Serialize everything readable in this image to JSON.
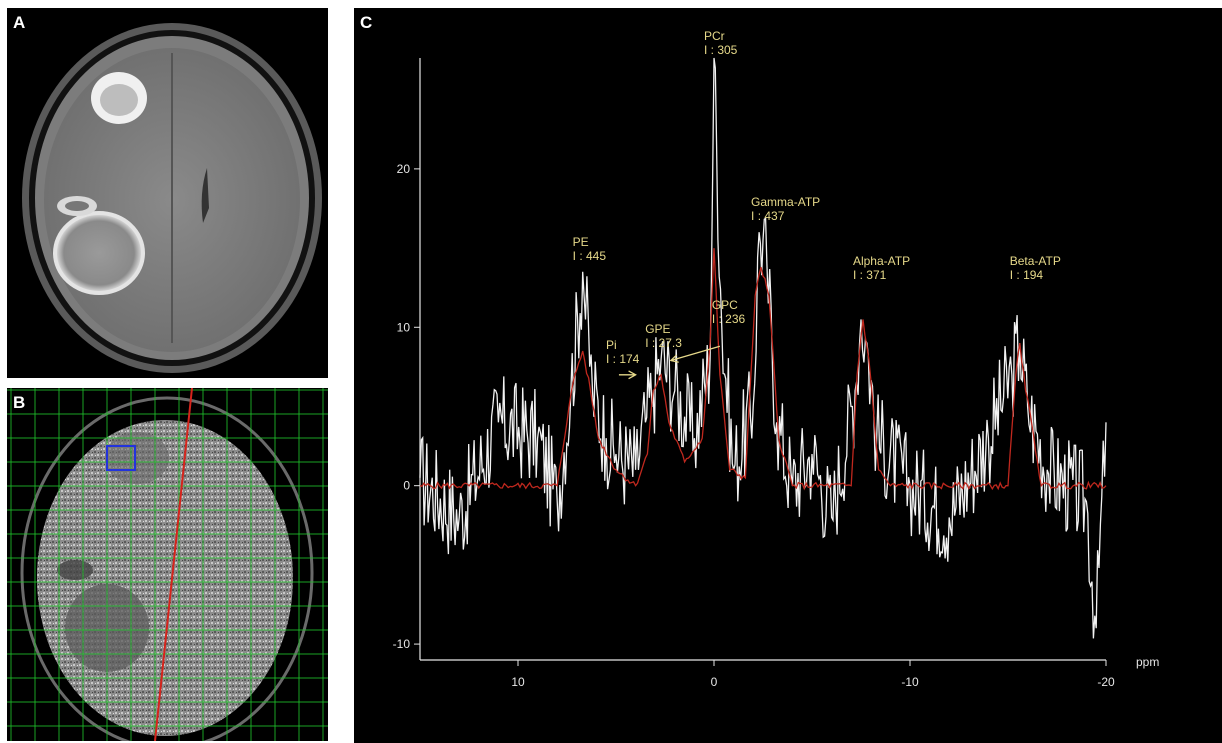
{
  "panels": {
    "a": {
      "letter": "A"
    },
    "b": {
      "letter": "B"
    },
    "c": {
      "letter": "C"
    }
  },
  "colors": {
    "background": "#000000",
    "raw_spectrum": "#f2f2f2",
    "fitted_spectrum": "#c0281e",
    "annotation_text": "#e6d98a",
    "grid_overlay": "#1fbf2a",
    "voxel_box": "#2233dd",
    "midline": "#d6241c"
  },
  "chart_data": {
    "type": "line",
    "xlabel": "ppm",
    "x_ticks": [
      10,
      0,
      -10,
      -20
    ],
    "y_ticks": [
      20,
      10,
      0,
      -10
    ],
    "xlim": [
      15,
      -20
    ],
    "ylim": [
      -10.5,
      27
    ],
    "x_reversed": true,
    "grid": false,
    "series": [
      {
        "role": "raw",
        "points": [
          [
            15,
            0.5
          ],
          [
            13,
            -2
          ],
          [
            11,
            4
          ],
          [
            9,
            3
          ],
          [
            8,
            -1
          ],
          [
            7.3,
            6
          ],
          [
            6.7,
            13.5
          ],
          [
            6.2,
            6
          ],
          [
            5.5,
            3
          ],
          [
            5,
            2
          ],
          [
            4,
            1
          ],
          [
            3.5,
            4
          ],
          [
            3.1,
            6
          ],
          [
            2.7,
            8
          ],
          [
            2,
            6
          ],
          [
            1,
            3
          ],
          [
            0.2,
            8
          ],
          [
            0,
            27
          ],
          [
            -0.4,
            10
          ],
          [
            -1,
            1
          ],
          [
            -2,
            5
          ],
          [
            -2.3,
            16
          ],
          [
            -2.7,
            14
          ],
          [
            -3.2,
            4
          ],
          [
            -4,
            0
          ],
          [
            -5,
            2
          ],
          [
            -6,
            -2
          ],
          [
            -7.2,
            6
          ],
          [
            -7.5,
            10.5
          ],
          [
            -7.8,
            9
          ],
          [
            -8.3,
            3
          ],
          [
            -10,
            0
          ],
          [
            -12,
            -2
          ],
          [
            -14,
            3
          ],
          [
            -15.2,
            7
          ],
          [
            -15.6,
            9
          ],
          [
            -16,
            5
          ],
          [
            -17,
            1
          ],
          [
            -19,
            -1
          ],
          [
            -19.5,
            -9
          ],
          [
            -20,
            4
          ]
        ]
      },
      {
        "role": "fit",
        "points": [
          [
            15,
            0
          ],
          [
            8,
            0
          ],
          [
            7.4,
            5
          ],
          [
            7.1,
            7
          ],
          [
            6.7,
            8.5
          ],
          [
            6.3,
            6
          ],
          [
            5.9,
            3
          ],
          [
            5,
            1
          ],
          [
            4,
            0
          ],
          [
            3.4,
            2
          ],
          [
            3.1,
            6
          ],
          [
            2.7,
            7
          ],
          [
            2.3,
            4
          ],
          [
            1.5,
            1.5
          ],
          [
            0.6,
            3
          ],
          [
            0.2,
            9
          ],
          [
            0,
            15
          ],
          [
            -0.3,
            7
          ],
          [
            -0.8,
            1
          ],
          [
            -1.6,
            0.5
          ],
          [
            -2.1,
            12
          ],
          [
            -2.4,
            13.8
          ],
          [
            -2.8,
            12
          ],
          [
            -3.3,
            3
          ],
          [
            -4,
            0
          ],
          [
            -7,
            0
          ],
          [
            -7.3,
            7
          ],
          [
            -7.6,
            10.5
          ],
          [
            -7.9,
            8
          ],
          [
            -8.4,
            1
          ],
          [
            -9,
            0
          ],
          [
            -15,
            0
          ],
          [
            -15.4,
            7
          ],
          [
            -15.6,
            9
          ],
          [
            -15.9,
            6
          ],
          [
            -16.2,
            4
          ],
          [
            -16.7,
            0
          ],
          [
            -20,
            0
          ]
        ]
      }
    ],
    "annotations": [
      {
        "label": "PCr",
        "value": "I : 305",
        "x": 0,
        "y": 26.5
      },
      {
        "label": "Gamma-ATP",
        "value": "I : 437",
        "x": -2.4,
        "y": 16
      },
      {
        "label": "PE",
        "value": "I : 445",
        "x": 6.7,
        "y": 13.5
      },
      {
        "label": "Alpha-ATP",
        "value": "I : 371",
        "x": -7.6,
        "y": 12.3
      },
      {
        "label": "Beta-ATP",
        "value": "I : 194",
        "x": -15.6,
        "y": 12.3
      },
      {
        "label": "GPC",
        "value": "I : 236",
        "x": -0.4,
        "y": 9.5
      },
      {
        "label": "GPE",
        "value": "I : 27.3",
        "x": 3,
        "y": 8
      },
      {
        "label": "Pi",
        "value": "I : 174",
        "x": 5,
        "y": 7
      }
    ]
  }
}
